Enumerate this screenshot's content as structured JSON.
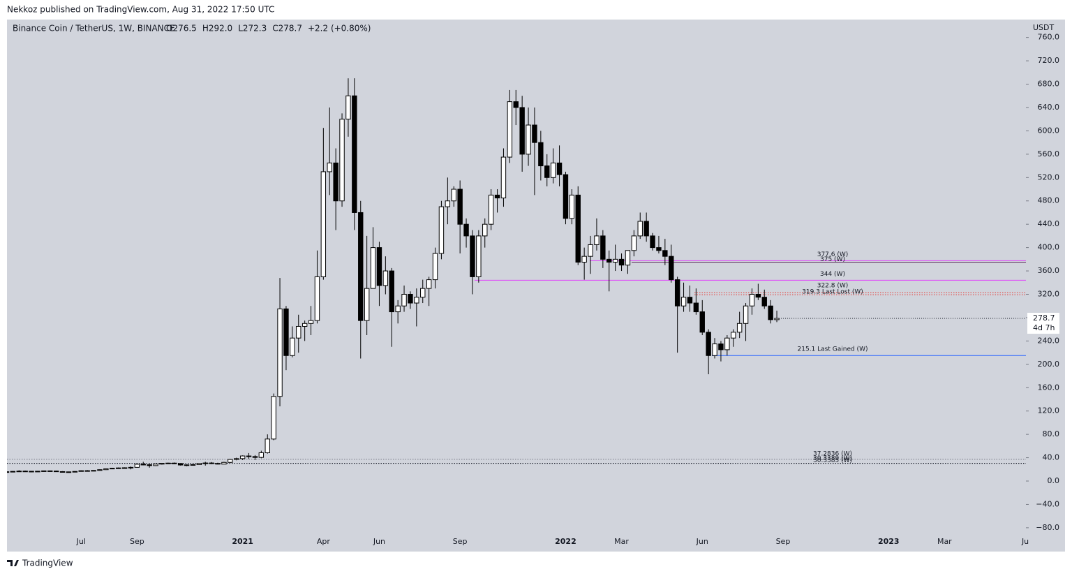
{
  "header": {
    "published": "Nekkoz published on TradingView.com, Aug 31, 2022 17:50 UTC",
    "brand": "TradingView"
  },
  "chart_data": {
    "type": "candlestick",
    "symbol": "Binance Coin / TetherUS, 1W, BINANCE",
    "legend_values": [
      "O276.5",
      "H292.0",
      "L272.3",
      "C278.7",
      "+2.2 (+0.80%)"
    ],
    "currency": "USDT",
    "countdown": "4d 7h",
    "ylim": [
      -120.8,
      790.7
    ],
    "yticks": [
      {
        "value": 760,
        "label": "760.0"
      },
      {
        "value": 720,
        "label": "720.0"
      },
      {
        "value": 680,
        "label": "680.0"
      },
      {
        "value": 640,
        "label": "640.0"
      },
      {
        "value": 600,
        "label": "600.0"
      },
      {
        "value": 560,
        "label": "560.0"
      },
      {
        "value": 520,
        "label": "520.0"
      },
      {
        "value": 480,
        "label": "480.0"
      },
      {
        "value": 440,
        "label": "440.0"
      },
      {
        "value": 400,
        "label": "400.0"
      },
      {
        "value": 360,
        "label": "360.0"
      },
      {
        "value": 320,
        "label": "320.0"
      },
      {
        "value": 280,
        "label": "280.0"
      },
      {
        "value": 240,
        "label": "240.0"
      },
      {
        "value": 200,
        "label": "200.0"
      },
      {
        "value": 160,
        "label": "160.0"
      },
      {
        "value": 120,
        "label": "120.0"
      },
      {
        "value": 80,
        "label": "80.0"
      },
      {
        "value": 40,
        "label": "40.0"
      },
      {
        "value": 0,
        "label": "0.0"
      },
      {
        "value": -40,
        "label": "−40.0"
      },
      {
        "value": -80,
        "label": "−80.0"
      }
    ],
    "categories": [
      null,
      null,
      null,
      null,
      null,
      null,
      null,
      null,
      null,
      null,
      null,
      null,
      "Jul",
      null,
      null,
      null,
      null,
      null,
      null,
      null,
      null,
      "Sep",
      null,
      null,
      null,
      null,
      null,
      null,
      null,
      null,
      null,
      null,
      null,
      null,
      null,
      null,
      null,
      null,
      "2021",
      null,
      null,
      null,
      null,
      null,
      null,
      null,
      null,
      null,
      null,
      null,
      null,
      "Apr",
      null,
      null,
      null,
      null,
      null,
      null,
      null,
      null,
      "Jun",
      null,
      null,
      null,
      null,
      null,
      null,
      null,
      null,
      null,
      null,
      null,
      null,
      "Sep",
      null,
      null,
      null,
      null,
      null,
      null,
      null,
      null,
      null,
      null,
      null,
      null,
      null,
      null,
      null,
      null,
      "2022",
      null,
      null,
      null,
      null,
      null,
      null,
      null,
      null,
      "Mar",
      null,
      null,
      null,
      null,
      null,
      null,
      null,
      null,
      null,
      null,
      null,
      null,
      "Jun",
      null,
      null,
      null,
      null,
      null,
      null,
      null,
      null,
      null,
      null,
      null,
      null,
      "Sep",
      null,
      null,
      null,
      null,
      null,
      null,
      null,
      null,
      null,
      null,
      null,
      null,
      null,
      null,
      null,
      null,
      "2023",
      null,
      null,
      null,
      null,
      null,
      null,
      null,
      null,
      "Mar",
      null,
      null,
      null,
      null,
      null,
      null,
      null,
      null,
      null,
      null,
      null,
      null,
      "Ju"
    ],
    "ohlc": [
      [
        15.5,
        17.0,
        14.5,
        16.0
      ],
      [
        16.0,
        17.2,
        15.5,
        16.6
      ],
      [
        16.6,
        18.5,
        16.0,
        17.1
      ],
      [
        17.1,
        18.0,
        16.0,
        16.8
      ],
      [
        16.8,
        17.2,
        15.0,
        16.5
      ],
      [
        16.5,
        17.4,
        16.0,
        16.9
      ],
      [
        16.9,
        17.8,
        16.0,
        17.5
      ],
      [
        17.5,
        18.0,
        16.5,
        17.2
      ],
      [
        17.2,
        17.8,
        15.8,
        16.2
      ],
      [
        16.2,
        17.0,
        15.5,
        15.8
      ],
      [
        15.8,
        16.2,
        14.8,
        15.5
      ],
      [
        15.5,
        17.0,
        15.3,
        16.5
      ],
      [
        16.5,
        18.5,
        16.3,
        17.8
      ],
      [
        17.8,
        18.8,
        17.2,
        17.5
      ],
      [
        17.5,
        18.6,
        17.0,
        18.2
      ],
      [
        18.2,
        20.0,
        17.8,
        19.5
      ],
      [
        19.5,
        21.5,
        19.0,
        21.0
      ],
      [
        21.0,
        22.5,
        20.5,
        22.0
      ],
      [
        22.0,
        23.3,
        21.5,
        22.5
      ],
      [
        22.5,
        23.5,
        21.8,
        22.8
      ],
      [
        22.8,
        25.0,
        20.0,
        23.5
      ],
      [
        23.5,
        30.0,
        23.0,
        28.8
      ],
      [
        28.8,
        33.0,
        27.0,
        28.0
      ],
      [
        28.0,
        29.5,
        23.0,
        26.5
      ],
      [
        26.5,
        29.5,
        26.0,
        29.0
      ],
      [
        29.0,
        31.0,
        28.0,
        30.5
      ],
      [
        30.5,
        31.5,
        29.5,
        30.8
      ],
      [
        30.8,
        31.8,
        29.0,
        30.0
      ],
      [
        30.0,
        30.5,
        26.5,
        27.5
      ],
      [
        27.5,
        28.5,
        25.5,
        27.8
      ],
      [
        27.8,
        29.0,
        27.0,
        28.2
      ],
      [
        28.2,
        31.0,
        27.8,
        30.5
      ],
      [
        30.5,
        33.0,
        26.5,
        31.0
      ],
      [
        31.0,
        32.5,
        29.0,
        30.2
      ],
      [
        30.2,
        31.5,
        28.5,
        29.0
      ],
      [
        29.0,
        33.0,
        28.8,
        32.0
      ],
      [
        32.0,
        38.0,
        31.0,
        37.0
      ],
      [
        37.0,
        40.0,
        35.5,
        38.5
      ],
      [
        38.5,
        44.0,
        36.0,
        43.0
      ],
      [
        43.0,
        48.0,
        38.0,
        42.0
      ],
      [
        42.0,
        44.5,
        36.0,
        40.5
      ],
      [
        40.5,
        52.0,
        39.0,
        48.5
      ],
      [
        48.5,
        80.0,
        47.0,
        72.0
      ],
      [
        72.0,
        150.0,
        70.0,
        145.0
      ],
      [
        145.0,
        348.0,
        128.0,
        295.0
      ],
      [
        295.0,
        300.0,
        190.0,
        215.0
      ],
      [
        215.0,
        265.0,
        212.0,
        245.0
      ],
      [
        245.0,
        285.0,
        220.0,
        265.0
      ],
      [
        265.0,
        275.0,
        240.0,
        270.0
      ],
      [
        270.0,
        300.0,
        250.0,
        275.0
      ],
      [
        275.0,
        395.0,
        270.0,
        350.0
      ],
      [
        350.0,
        605.0,
        345.0,
        530.0
      ],
      [
        530.0,
        640.0,
        490.0,
        545.0
      ],
      [
        545.0,
        570.0,
        430.0,
        480.0
      ],
      [
        480.0,
        630.0,
        470.0,
        620.0
      ],
      [
        620.0,
        690.0,
        590.0,
        660.0
      ],
      [
        660.0,
        690.0,
        430.0,
        460.0
      ],
      [
        460.0,
        480.0,
        210.0,
        275.0
      ],
      [
        275.0,
        420.0,
        250.0,
        330.0
      ],
      [
        330.0,
        435.0,
        330.0,
        400.0
      ],
      [
        400.0,
        410.0,
        300.0,
        335.0
      ],
      [
        335.0,
        385.0,
        320.0,
        360.0
      ],
      [
        360.0,
        365.0,
        230.0,
        290.0
      ],
      [
        290.0,
        310.0,
        270.0,
        300.0
      ],
      [
        300.0,
        335.0,
        290.0,
        320.0
      ],
      [
        320.0,
        325.0,
        295.0,
        305.0
      ],
      [
        305.0,
        330.0,
        265.0,
        315.0
      ],
      [
        315.0,
        345.0,
        305.0,
        330.0
      ],
      [
        330.0,
        350.0,
        300.0,
        345.0
      ],
      [
        345.0,
        400.0,
        330.0,
        390.0
      ],
      [
        390.0,
        480.0,
        380.0,
        470.0
      ],
      [
        470.0,
        520.0,
        440.0,
        480.0
      ],
      [
        480.0,
        505.0,
        470.0,
        500.0
      ],
      [
        500.0,
        515.0,
        390.0,
        440.0
      ],
      [
        440.0,
        450.0,
        400.0,
        420.0
      ],
      [
        420.0,
        430.0,
        320.0,
        350.0
      ],
      [
        350.0,
        430.0,
        340.0,
        420.0
      ],
      [
        420.0,
        450.0,
        400.0,
        440.0
      ],
      [
        440.0,
        500.0,
        430.0,
        490.0
      ],
      [
        490.0,
        500.0,
        460.0,
        485.0
      ],
      [
        485.0,
        570.0,
        470.0,
        555.0
      ],
      [
        555.0,
        670.0,
        545.0,
        650.0
      ],
      [
        650.0,
        670.0,
        610.0,
        640.0
      ],
      [
        640.0,
        660.0,
        530.0,
        560.0
      ],
      [
        560.0,
        640.0,
        540.0,
        610.0
      ],
      [
        610.0,
        640.0,
        490.0,
        580.0
      ],
      [
        580.0,
        600.0,
        515.0,
        540.0
      ],
      [
        540.0,
        560.0,
        505.0,
        520.0
      ],
      [
        520.0,
        570.0,
        510.0,
        545.0
      ],
      [
        545.0,
        575.0,
        505.0,
        525.0
      ],
      [
        525.0,
        530.0,
        440.0,
        450.0
      ],
      [
        450.0,
        500.0,
        440.0,
        490.0
      ],
      [
        490.0,
        505.0,
        370.0,
        375.0
      ],
      [
        375.0,
        400.0,
        345.0,
        385.0
      ],
      [
        385.0,
        420.0,
        355.0,
        405.0
      ],
      [
        405.0,
        450.0,
        395.0,
        420.0
      ],
      [
        420.0,
        430.0,
        365.0,
        380.0
      ],
      [
        380.0,
        395.0,
        325.0,
        375.0
      ],
      [
        375.0,
        405.0,
        360.0,
        380.0
      ],
      [
        380.0,
        390.0,
        360.0,
        370.0
      ],
      [
        370.0,
        395.0,
        355.0,
        395.0
      ],
      [
        395.0,
        430.0,
        385.0,
        420.0
      ],
      [
        420.0,
        460.0,
        415.0,
        445.0
      ],
      [
        445.0,
        460.0,
        410.0,
        420.0
      ],
      [
        420.0,
        425.0,
        395.0,
        400.0
      ],
      [
        400.0,
        420.0,
        390.0,
        395.0
      ],
      [
        395.0,
        415.0,
        370.0,
        385.0
      ],
      [
        385.0,
        405.0,
        340.0,
        345.0
      ],
      [
        345.0,
        350.0,
        220.0,
        300.0
      ],
      [
        300.0,
        340.0,
        290.0,
        315.0
      ],
      [
        315.0,
        335.0,
        290.0,
        305.0
      ],
      [
        305.0,
        330.0,
        285.0,
        290.0
      ],
      [
        290.0,
        310.0,
        250.0,
        255.0
      ],
      [
        255.0,
        260.0,
        183.0,
        215.0
      ],
      [
        215.0,
        245.0,
        210.0,
        235.0
      ],
      [
        235.0,
        240.0,
        205.0,
        225.0
      ],
      [
        225.0,
        250.0,
        215.0,
        245.0
      ],
      [
        245.0,
        260.0,
        230.0,
        255.0
      ],
      [
        255.0,
        290.0,
        245.0,
        270.0
      ],
      [
        270.0,
        305.0,
        240.0,
        300.0
      ],
      [
        300.0,
        330.0,
        285.0,
        320.0
      ],
      [
        320.0,
        338.0,
        310.0,
        315.0
      ],
      [
        315.0,
        328.0,
        295.0,
        300.0
      ],
      [
        300.0,
        310.0,
        270.0,
        276.5
      ],
      [
        276.5,
        292.0,
        272.3,
        278.7
      ],
      null,
      null,
      null,
      null,
      null,
      null,
      null,
      null,
      null,
      null,
      null,
      null,
      null,
      null,
      null,
      null,
      null,
      null,
      null,
      null,
      null,
      null,
      null,
      null,
      null,
      null,
      null,
      null,
      null,
      null,
      null,
      null,
      null,
      null,
      null,
      null,
      null,
      null,
      null,
      null
    ],
    "up_color": "#ffffff",
    "down_color": "#000000",
    "levels": [
      {
        "value": 377.6,
        "label": "377.6 (W)",
        "color": "#e040fb",
        "style": "solid"
      },
      {
        "value": 375,
        "label": "375 (W)",
        "color": "#5a2a5a",
        "style": "solid"
      },
      {
        "value": 344,
        "label": "344 (W)",
        "color": "#e040fb",
        "style": "solid"
      },
      {
        "value": 322.8,
        "label": "322.8 (W)",
        "color": "#e53935",
        "style": "dotted"
      },
      {
        "value": 319.3,
        "label": "319.3 Last Lost (W)",
        "color": "#e53935",
        "style": "dotted"
      },
      {
        "value": 215.1,
        "label": "215.1 Last Gained (W)",
        "color": "#2962ff",
        "style": "solid"
      },
      {
        "value": 37.2836,
        "label": "37.2836 (W)",
        "color": "#787b86",
        "style": "dotted"
      },
      {
        "value": 30.3389,
        "label": "30.3389 (W)",
        "color": "#131722",
        "style": "dotted"
      },
      {
        "value": 30.3385,
        "label": "30.3385 (W)",
        "color": "#131722",
        "style": "dotted"
      }
    ]
  }
}
